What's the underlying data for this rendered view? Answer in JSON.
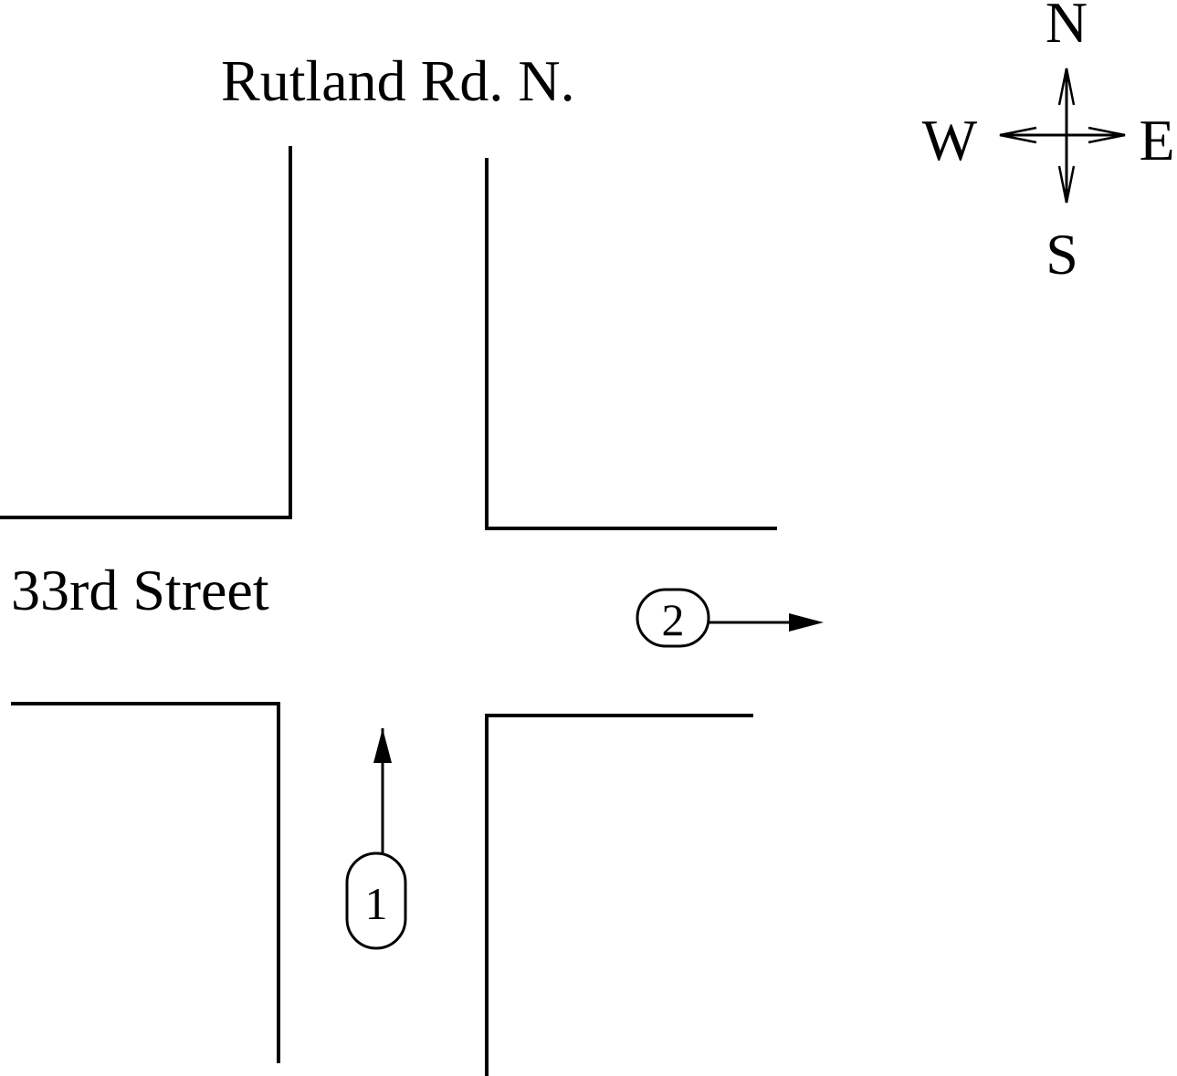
{
  "streets": {
    "north_south_name": "Rutland Rd. N.",
    "east_west_name": "33rd Street"
  },
  "compass": {
    "north": "N",
    "south": "S",
    "east": "E",
    "west": "W"
  },
  "vehicles": [
    {
      "id": "1",
      "heading": "north"
    },
    {
      "id": "2",
      "heading": "east"
    }
  ]
}
